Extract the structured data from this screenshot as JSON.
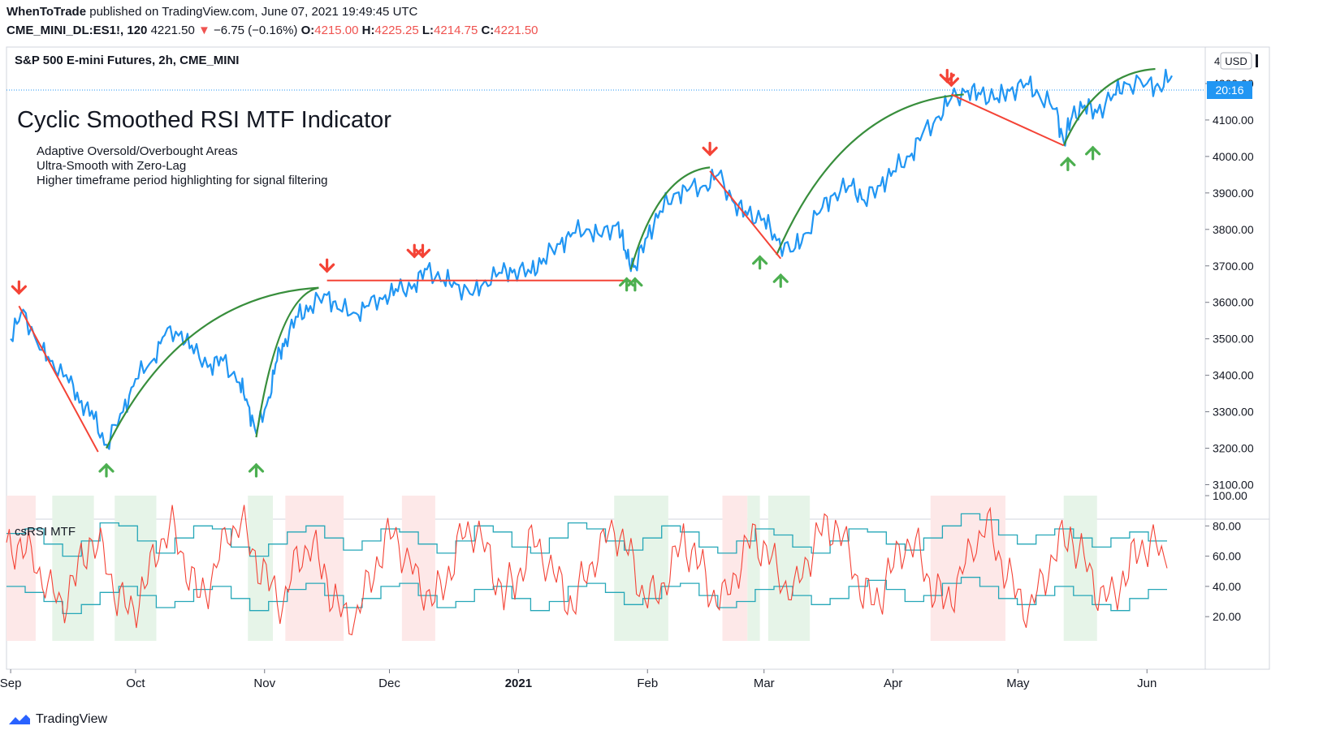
{
  "header": {
    "publisher": "WhenToTrade",
    "published_text": "published on TradingView.com, June 07, 2021 19:49:45 UTC",
    "symbol": "CME_MINI_DL:ES1!, 120",
    "last": "4221.50",
    "change": "−6.75 (−0.16%)",
    "o_label": "O:",
    "o": "4215.00",
    "h_label": "H:",
    "h": "4225.25",
    "l_label": "L:",
    "l": "4214.75",
    "c_label": "C:",
    "c": "4221.50"
  },
  "main_pane": {
    "legend": "S&P 500 E-mini Futures, 2h, CME_MINI",
    "title": "Cyclic Smoothed RSI MTF Indicator",
    "notes": [
      "Adaptive Oversold/Overbought Areas",
      "Ultra-Smooth with Zero-Lag",
      "Higher timeframe period highlighting for signal filtering"
    ],
    "currency": "USD",
    "price_label": "20:16",
    "top_tick": "4"
  },
  "sub_pane": {
    "legend": "csRSI MTF"
  },
  "footer": {
    "brand": "TradingView"
  },
  "colors": {
    "price": "#2196f3",
    "up_arc": "#388e3c",
    "down_line": "#f44336",
    "buy": "#4caf50",
    "sell": "#f44336",
    "rsi": "#f44336",
    "band": "#26a7b8",
    "ob_zone": "#fde8e8",
    "os_zone": "#e6f4e8",
    "price_tag": "#2196f3"
  },
  "chart_data": [
    {
      "type": "line",
      "name": "price",
      "x_ticks": [
        "Sep",
        "Oct",
        "Nov",
        "Dec",
        "2021",
        "Feb",
        "Mar",
        "Apr",
        "May",
        "Jun"
      ],
      "y_ticks": [
        3100,
        3200,
        3300,
        3400,
        3500,
        3600,
        3700,
        3800,
        3900,
        4000,
        4100,
        4200
      ],
      "ylim": [
        3070,
        4300
      ],
      "x": [
        "2020-09-01",
        "2020-09-04",
        "2020-09-08",
        "2020-09-11",
        "2020-09-15",
        "2020-09-18",
        "2020-09-21",
        "2020-09-24",
        "2020-09-28",
        "2020-10-01",
        "2020-10-05",
        "2020-10-08",
        "2020-10-12",
        "2020-10-15",
        "2020-10-19",
        "2020-10-22",
        "2020-10-26",
        "2020-10-28",
        "2020-10-30",
        "2020-11-02",
        "2020-11-04",
        "2020-11-06",
        "2020-11-09",
        "2020-11-12",
        "2020-11-16",
        "2020-11-19",
        "2020-11-23",
        "2020-11-26",
        "2020-11-30",
        "2020-12-03",
        "2020-12-07",
        "2020-12-10",
        "2020-12-14",
        "2020-12-17",
        "2020-12-21",
        "2020-12-24",
        "2020-12-28",
        "2020-12-31",
        "2021-01-04",
        "2021-01-07",
        "2021-01-11",
        "2021-01-14",
        "2021-01-18",
        "2021-01-21",
        "2021-01-25",
        "2021-01-27",
        "2021-01-29",
        "2021-02-01",
        "2021-02-04",
        "2021-02-08",
        "2021-02-11",
        "2021-02-15",
        "2021-02-18",
        "2021-02-22",
        "2021-02-25",
        "2021-03-01",
        "2021-03-04",
        "2021-03-08",
        "2021-03-11",
        "2021-03-15",
        "2021-03-18",
        "2021-03-22",
        "2021-03-25",
        "2021-03-29",
        "2021-04-01",
        "2021-04-05",
        "2021-04-08",
        "2021-04-12",
        "2021-04-15",
        "2021-04-19",
        "2021-04-22",
        "2021-04-26",
        "2021-04-29",
        "2021-05-03",
        "2021-05-06",
        "2021-05-10",
        "2021-05-12",
        "2021-05-14",
        "2021-05-17",
        "2021-05-20",
        "2021-05-24",
        "2021-05-27",
        "2021-06-01",
        "2021-06-04",
        "2021-06-07"
      ],
      "y": [
        3500,
        3580,
        3470,
        3440,
        3380,
        3330,
        3280,
        3210,
        3300,
        3390,
        3440,
        3510,
        3520,
        3460,
        3430,
        3440,
        3380,
        3320,
        3240,
        3340,
        3440,
        3500,
        3560,
        3590,
        3620,
        3580,
        3570,
        3590,
        3620,
        3630,
        3650,
        3690,
        3660,
        3650,
        3620,
        3660,
        3680,
        3690,
        3680,
        3720,
        3760,
        3790,
        3800,
        3780,
        3820,
        3720,
        3700,
        3780,
        3850,
        3900,
        3910,
        3920,
        3950,
        3870,
        3840,
        3830,
        3770,
        3740,
        3790,
        3860,
        3900,
        3920,
        3880,
        3920,
        3960,
        4000,
        4060,
        4110,
        4160,
        4180,
        4170,
        4160,
        4180,
        4200,
        4170,
        4130,
        4040,
        4110,
        4140,
        4120,
        4170,
        4200,
        4200,
        4190,
        4221.5
      ],
      "arcs_up": [
        [
          [
            "2020-09-24",
            3200
          ],
          [
            "2020-11-14",
            3640
          ]
        ],
        [
          [
            "2020-10-30",
            3230
          ],
          [
            "2020-11-14",
            3640
          ]
        ],
        [
          [
            "2021-01-28",
            3690
          ],
          [
            "2021-02-16",
            3970
          ]
        ],
        [
          [
            "2021-03-04",
            3730
          ],
          [
            "2021-04-18",
            4170
          ]
        ],
        [
          [
            "2021-05-12",
            4030
          ],
          [
            "2021-06-03",
            4240
          ]
        ]
      ],
      "lines_down": [
        [
          [
            "2020-09-03",
            3590
          ],
          [
            "2020-09-22",
            3190
          ]
        ],
        [
          [
            "2020-11-16",
            3660
          ],
          [
            "2021-01-28",
            3660
          ]
        ],
        [
          [
            "2021-02-16",
            3960
          ],
          [
            "2021-03-05",
            3720
          ]
        ],
        [
          [
            "2021-04-15",
            4170
          ],
          [
            "2021-05-12",
            4030
          ]
        ]
      ],
      "sell_signals": [
        [
          "2020-09-03",
          3630
        ],
        [
          "2020-11-16",
          3690
        ],
        [
          "2020-12-07",
          3730
        ],
        [
          "2020-12-09",
          3730
        ],
        [
          "2021-02-16",
          4010
        ],
        [
          "2021-04-14",
          4210
        ],
        [
          "2021-04-15",
          4200
        ]
      ],
      "buy_signals": [
        [
          "2020-09-24",
          3150
        ],
        [
          "2020-10-30",
          3150
        ],
        [
          "2021-01-27",
          3660
        ],
        [
          "2021-01-29",
          3660
        ],
        [
          "2021-02-28",
          3720
        ],
        [
          "2021-03-05",
          3670
        ],
        [
          "2021-05-13",
          3990
        ],
        [
          "2021-05-19",
          4020
        ]
      ]
    },
    {
      "type": "line",
      "name": "csRSI MTF",
      "y_ticks": [
        20,
        40,
        60,
        80,
        100
      ],
      "ylim": [
        4,
        100
      ],
      "rsi": [
        62,
        70,
        55,
        40,
        28,
        45,
        72,
        60,
        35,
        22,
        40,
        68,
        78,
        55,
        30,
        50,
        75,
        82,
        60,
        40,
        30,
        55,
        70,
        48,
        25,
        15,
        35,
        62,
        75,
        58,
        40,
        30,
        50,
        72,
        80,
        55,
        35,
        45,
        70,
        60,
        40,
        28,
        48,
        66,
        80,
        62,
        38,
        30,
        52,
        70,
        58,
        36,
        30,
        55,
        72,
        65,
        45,
        35,
        60,
        76,
        82,
        60,
        35,
        30,
        50,
        70,
        62,
        40,
        28,
        46,
        68,
        80,
        58,
        35,
        25,
        42,
        66,
        74,
        56,
        38,
        30,
        50,
        64,
        70,
        52
      ],
      "ob": [
        75,
        78,
        68,
        60,
        70,
        82,
        80,
        70,
        62,
        72,
        80,
        78,
        66,
        60,
        68,
        76,
        80,
        72,
        64,
        70,
        78,
        76,
        68,
        62,
        70,
        80,
        76,
        66,
        62,
        72,
        82,
        78,
        70,
        64,
        72,
        80,
        76,
        66,
        62,
        70,
        78,
        74,
        66,
        62,
        70,
        78,
        76,
        68,
        64,
        72,
        80,
        88,
        84,
        74,
        68,
        74,
        78,
        72,
        66,
        72,
        76,
        70
      ],
      "os": [
        40,
        36,
        30,
        22,
        28,
        36,
        40,
        34,
        26,
        30,
        38,
        40,
        32,
        24,
        30,
        38,
        42,
        34,
        26,
        32,
        40,
        42,
        34,
        26,
        30,
        38,
        40,
        32,
        24,
        30,
        40,
        42,
        36,
        28,
        32,
        40,
        42,
        34,
        26,
        30,
        38,
        40,
        34,
        28,
        32,
        40,
        44,
        38,
        30,
        34,
        42,
        46,
        40,
        32,
        28,
        34,
        40,
        34,
        28,
        24,
        32,
        38
      ]
    }
  ]
}
